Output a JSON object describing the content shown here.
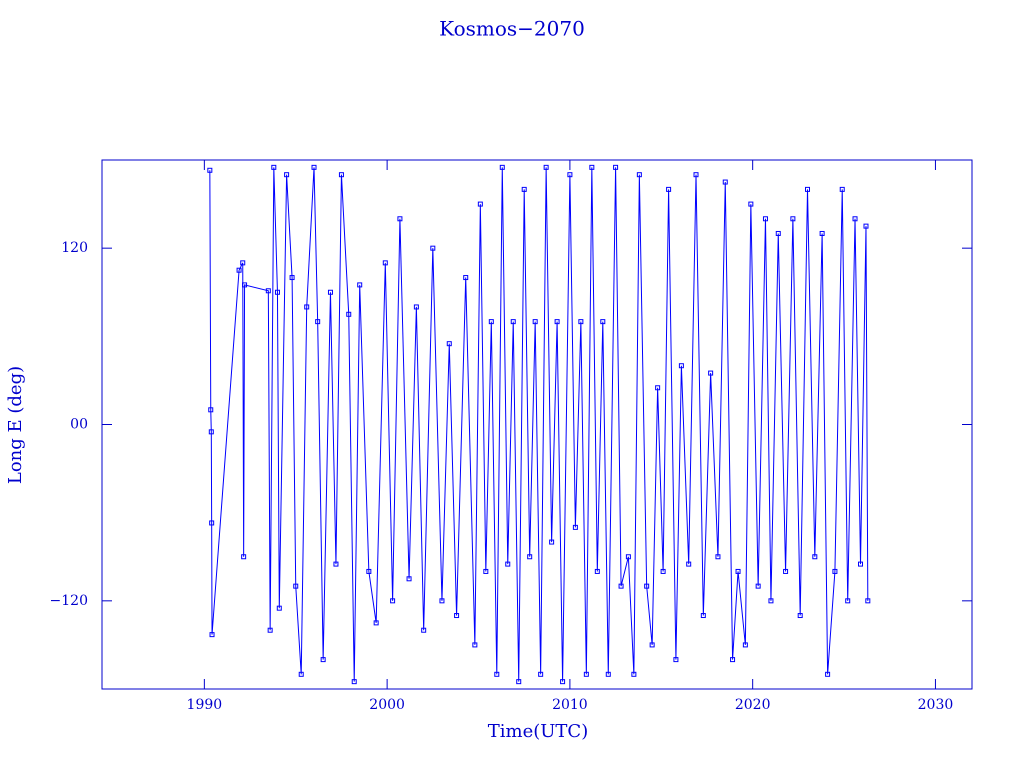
{
  "chart_data": {
    "type": "line",
    "title": "Kosmos−2070",
    "x_label": "Time(UTC)",
    "y_label": "Long E (deg)",
    "color": "#0000ff",
    "markers": true,
    "xlim": [
      1984.4,
      2032
    ],
    "ylim": [
      -180,
      180
    ],
    "xticks": [
      1990,
      2000,
      2010,
      2020,
      2030
    ],
    "yticks": [
      {
        "value": -120,
        "label": "−120"
      },
      {
        "value": 0,
        "label": "00"
      },
      {
        "value": 120,
        "label": "120"
      }
    ],
    "x": [
      1990.3,
      1990.35,
      1990.38,
      1990.4,
      1990.42,
      1991.9,
      1992.1,
      1992.15,
      1992.2,
      1993.5,
      1993.6,
      1993.8,
      1994.0,
      1994.1,
      1994.5,
      1994.8,
      1995.0,
      1995.3,
      1995.6,
      1996.0,
      1996.2,
      1996.5,
      1996.9,
      1997.2,
      1997.5,
      1997.9,
      1998.2,
      1998.5,
      1999.0,
      1999.4,
      1999.9,
      2000.3,
      2000.7,
      2001.2,
      2001.6,
      2002.0,
      2002.5,
      2003.0,
      2003.4,
      2003.8,
      2004.3,
      2004.8,
      2005.1,
      2005.4,
      2005.7,
      2006.0,
      2006.3,
      2006.6,
      2006.9,
      2007.2,
      2007.5,
      2007.8,
      2008.1,
      2008.4,
      2008.7,
      2009.0,
      2009.3,
      2009.6,
      2010.0,
      2010.3,
      2010.6,
      2010.9,
      2011.2,
      2011.5,
      2011.8,
      2012.1,
      2012.5,
      2012.8,
      2013.2,
      2013.5,
      2013.8,
      2014.2,
      2014.5,
      2014.8,
      2015.1,
      2015.4,
      2015.8,
      2016.1,
      2016.5,
      2016.9,
      2017.3,
      2017.7,
      2018.1,
      2018.5,
      2018.9,
      2019.2,
      2019.6,
      2019.9,
      2020.3,
      2020.7,
      2021.0,
      2021.4,
      2021.8,
      2022.2,
      2022.6,
      2023.0,
      2023.4,
      2023.8,
      2024.1,
      2024.5,
      2024.9,
      2025.2,
      2025.6,
      2025.9,
      2026.2,
      2026.3
    ],
    "values": [
      173,
      10,
      -5,
      -67,
      -143,
      105,
      110,
      -90,
      95,
      91,
      -140,
      175,
      90,
      -125,
      170,
      100,
      -110,
      -170,
      80,
      175,
      70,
      -160,
      90,
      -95,
      170,
      75,
      -175,
      95,
      -100,
      -135,
      110,
      -120,
      140,
      -105,
      80,
      -140,
      120,
      -120,
      55,
      -130,
      100,
      -150,
      150,
      -100,
      70,
      -170,
      175,
      -95,
      70,
      -175,
      160,
      -90,
      70,
      -170,
      175,
      -80,
      70,
      -175,
      170,
      -70,
      70,
      -170,
      175,
      -100,
      70,
      -170,
      175,
      -110,
      -90,
      -170,
      170,
      -110,
      -150,
      25,
      -100,
      160,
      -160,
      40,
      -95,
      170,
      -130,
      35,
      -90,
      165,
      -160,
      -100,
      -150,
      150,
      -110,
      140,
      -120,
      130,
      -100,
      140,
      -130,
      160,
      -90,
      130,
      -170,
      -100,
      160,
      -120,
      140,
      -95,
      135,
      -120
    ]
  }
}
